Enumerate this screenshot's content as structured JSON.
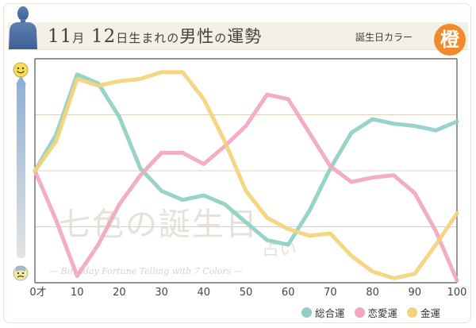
{
  "header": {
    "month": "11",
    "month_unit": "月",
    "day": "12",
    "day_unit": "日生まれの",
    "gender": "男性",
    "particle": "の",
    "topic": "運勢",
    "color_label": "誕生日カラー",
    "color_kanji": "橙",
    "color_hex": "#f08a2a"
  },
  "watermark": {
    "main": "七色の誕生日",
    "sub": "占い",
    "english": "— Birthday Fortune Telling with 7 Colors —"
  },
  "icons": {
    "top": "smile-face-icon",
    "bottom": "sad-face-icon"
  },
  "chart_data": {
    "type": "line",
    "x": [
      0,
      5,
      10,
      15,
      20,
      25,
      30,
      35,
      40,
      45,
      50,
      55,
      60,
      65,
      70,
      75,
      80,
      85,
      90,
      95,
      100
    ],
    "xlim": [
      0,
      100
    ],
    "ylim": [
      -5,
      5
    ],
    "x_tick_labels": [
      "0才",
      "10",
      "20",
      "30",
      "40",
      "50",
      "60",
      "70",
      "80",
      "90",
      "100"
    ],
    "x_ticks": [
      0,
      10,
      20,
      30,
      40,
      50,
      60,
      70,
      80,
      90,
      100
    ],
    "grid": "horizontal",
    "series": [
      {
        "name": "総合運",
        "color": "#8fcfc4",
        "values": [
          0,
          1.6,
          4.3,
          3.9,
          2.4,
          0.1,
          -0.9,
          -1.3,
          -1.1,
          -1.5,
          -2.3,
          -3.1,
          -3.3,
          -1.8,
          0.1,
          1.7,
          2.3,
          2.1,
          2.0,
          1.8,
          2.2
        ]
      },
      {
        "name": "恋愛運",
        "color": "#f2a7bf",
        "values": [
          0,
          -2.2,
          -4.7,
          -3.3,
          -1.5,
          -0.2,
          0.8,
          0.8,
          0.3,
          1.1,
          2.0,
          3.4,
          3.2,
          1.7,
          0.2,
          -0.5,
          -0.3,
          -0.2,
          -1.0,
          -2.7,
          -4.9
        ]
      },
      {
        "name": "金運",
        "color": "#f3d37a",
        "values": [
          0,
          1.3,
          4.1,
          3.8,
          4.0,
          4.1,
          4.4,
          4.4,
          3.2,
          1.3,
          -0.9,
          -2.1,
          -2.6,
          -2.9,
          -2.8,
          -3.8,
          -4.5,
          -4.8,
          -4.6,
          -3.3,
          -1.9
        ]
      }
    ]
  }
}
